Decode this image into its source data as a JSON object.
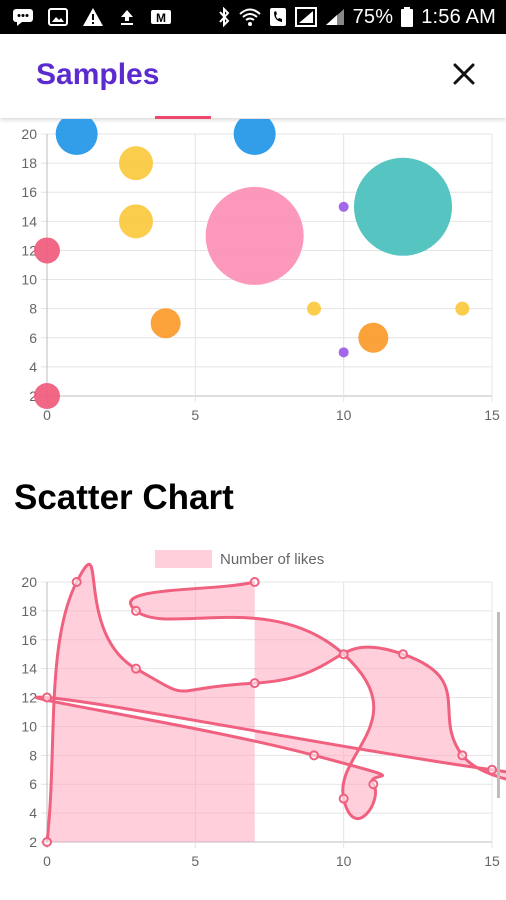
{
  "status_bar": {
    "battery": "75%",
    "time": "1:56 AM"
  },
  "app_bar": {
    "title": "Samples"
  },
  "section": {
    "scatter_title": "Scatter Chart"
  },
  "colors": {
    "accent": "#5b2bd0",
    "tab_indicator": "#f0476e",
    "line": "#f0607f",
    "fill": "rgba(255,160,185,0.5)"
  },
  "chart_data": [
    {
      "type": "bubble",
      "x_ticks": [
        "0",
        "5",
        "10",
        "15"
      ],
      "y_ticks": [
        "2",
        "4",
        "6",
        "8",
        "10",
        "12",
        "14",
        "16",
        "18",
        "20"
      ],
      "xlim": [
        0,
        15
      ],
      "ylim": [
        2,
        20
      ],
      "grid": true,
      "points": [
        {
          "x": 0,
          "y": 12,
          "r": 13,
          "color": "#f05b7c"
        },
        {
          "x": 0,
          "y": 2,
          "r": 13,
          "color": "#f05b7c"
        },
        {
          "x": 1,
          "y": 20,
          "r": 21,
          "color": "#2196e8"
        },
        {
          "x": 3,
          "y": 18,
          "r": 17,
          "color": "#fbc93e"
        },
        {
          "x": 3,
          "y": 14,
          "r": 17,
          "color": "#fbc93e"
        },
        {
          "x": 4,
          "y": 7,
          "r": 15,
          "color": "#fb9a2a"
        },
        {
          "x": 7,
          "y": 20,
          "r": 21,
          "color": "#2196e8"
        },
        {
          "x": 7,
          "y": 13,
          "r": 49,
          "color": "#fb8fb6"
        },
        {
          "x": 9,
          "y": 8,
          "r": 7,
          "color": "#fbc93e"
        },
        {
          "x": 10,
          "y": 15,
          "r": 5,
          "color": "#9b5ae8"
        },
        {
          "x": 10,
          "y": 5,
          "r": 5,
          "color": "#9b5ae8"
        },
        {
          "x": 11,
          "y": 6,
          "r": 15,
          "color": "#fb9a2a"
        },
        {
          "x": 12,
          "y": 15,
          "r": 49,
          "color": "#48bfbc"
        },
        {
          "x": 14,
          "y": 8,
          "r": 7,
          "color": "#fbc93e"
        }
      ]
    },
    {
      "type": "scatter",
      "legend": "Number of likes",
      "legend_position": "top",
      "x_ticks": [
        "0",
        "5",
        "10",
        "15"
      ],
      "y_ticks": [
        "2",
        "4",
        "6",
        "8",
        "10",
        "12",
        "14",
        "16",
        "18",
        "20"
      ],
      "xlim": [
        0,
        15
      ],
      "ylim": [
        2,
        20
      ],
      "grid": true,
      "show_line": true,
      "fill": true,
      "points": [
        {
          "x": 0,
          "y": 2
        },
        {
          "x": 1,
          "y": 20
        },
        {
          "x": 3,
          "y": 14
        },
        {
          "x": 7,
          "y": 13
        },
        {
          "x": 12,
          "y": 15
        },
        {
          "x": 14,
          "y": 8
        },
        {
          "x": 15,
          "y": 7
        },
        {
          "x": 0,
          "y": 12
        },
        {
          "x": 9,
          "y": 8
        },
        {
          "x": 11,
          "y": 6
        },
        {
          "x": 10,
          "y": 5
        },
        {
          "x": 10,
          "y": 15
        },
        {
          "x": 3,
          "y": 18
        },
        {
          "x": 7,
          "y": 20
        }
      ]
    }
  ]
}
